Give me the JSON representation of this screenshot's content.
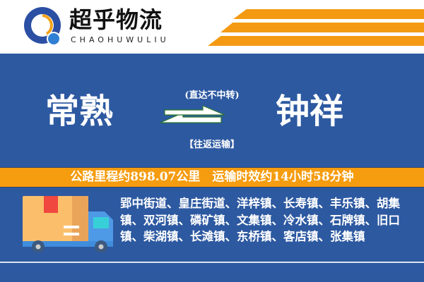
{
  "brand": {
    "name": "超乎物流",
    "name_en": "CHAOHUWULIU"
  },
  "route": {
    "origin": "常熟",
    "destination": "钟祥",
    "note_top": "(直达不中转)",
    "note_bottom": "【往返运输】"
  },
  "info": {
    "text": "公路里程约898.07公里　运输时效约14小时58分钟"
  },
  "towns": {
    "text": "郢中街道、皇庄街道、洋梓镇、长寿镇、丰乐镇、胡集镇、双河镇、磷矿镇、文集镇、冷水镇、石牌镇、旧口镇、柴湖镇、长滩镇、东桥镇、客店镇、张集镇"
  },
  "colors": {
    "background": "#2d59a1",
    "accent": "#f59c0f"
  },
  "icons": [
    "logo-icon",
    "two-way-arrow-icon",
    "delivery-truck-icon"
  ]
}
